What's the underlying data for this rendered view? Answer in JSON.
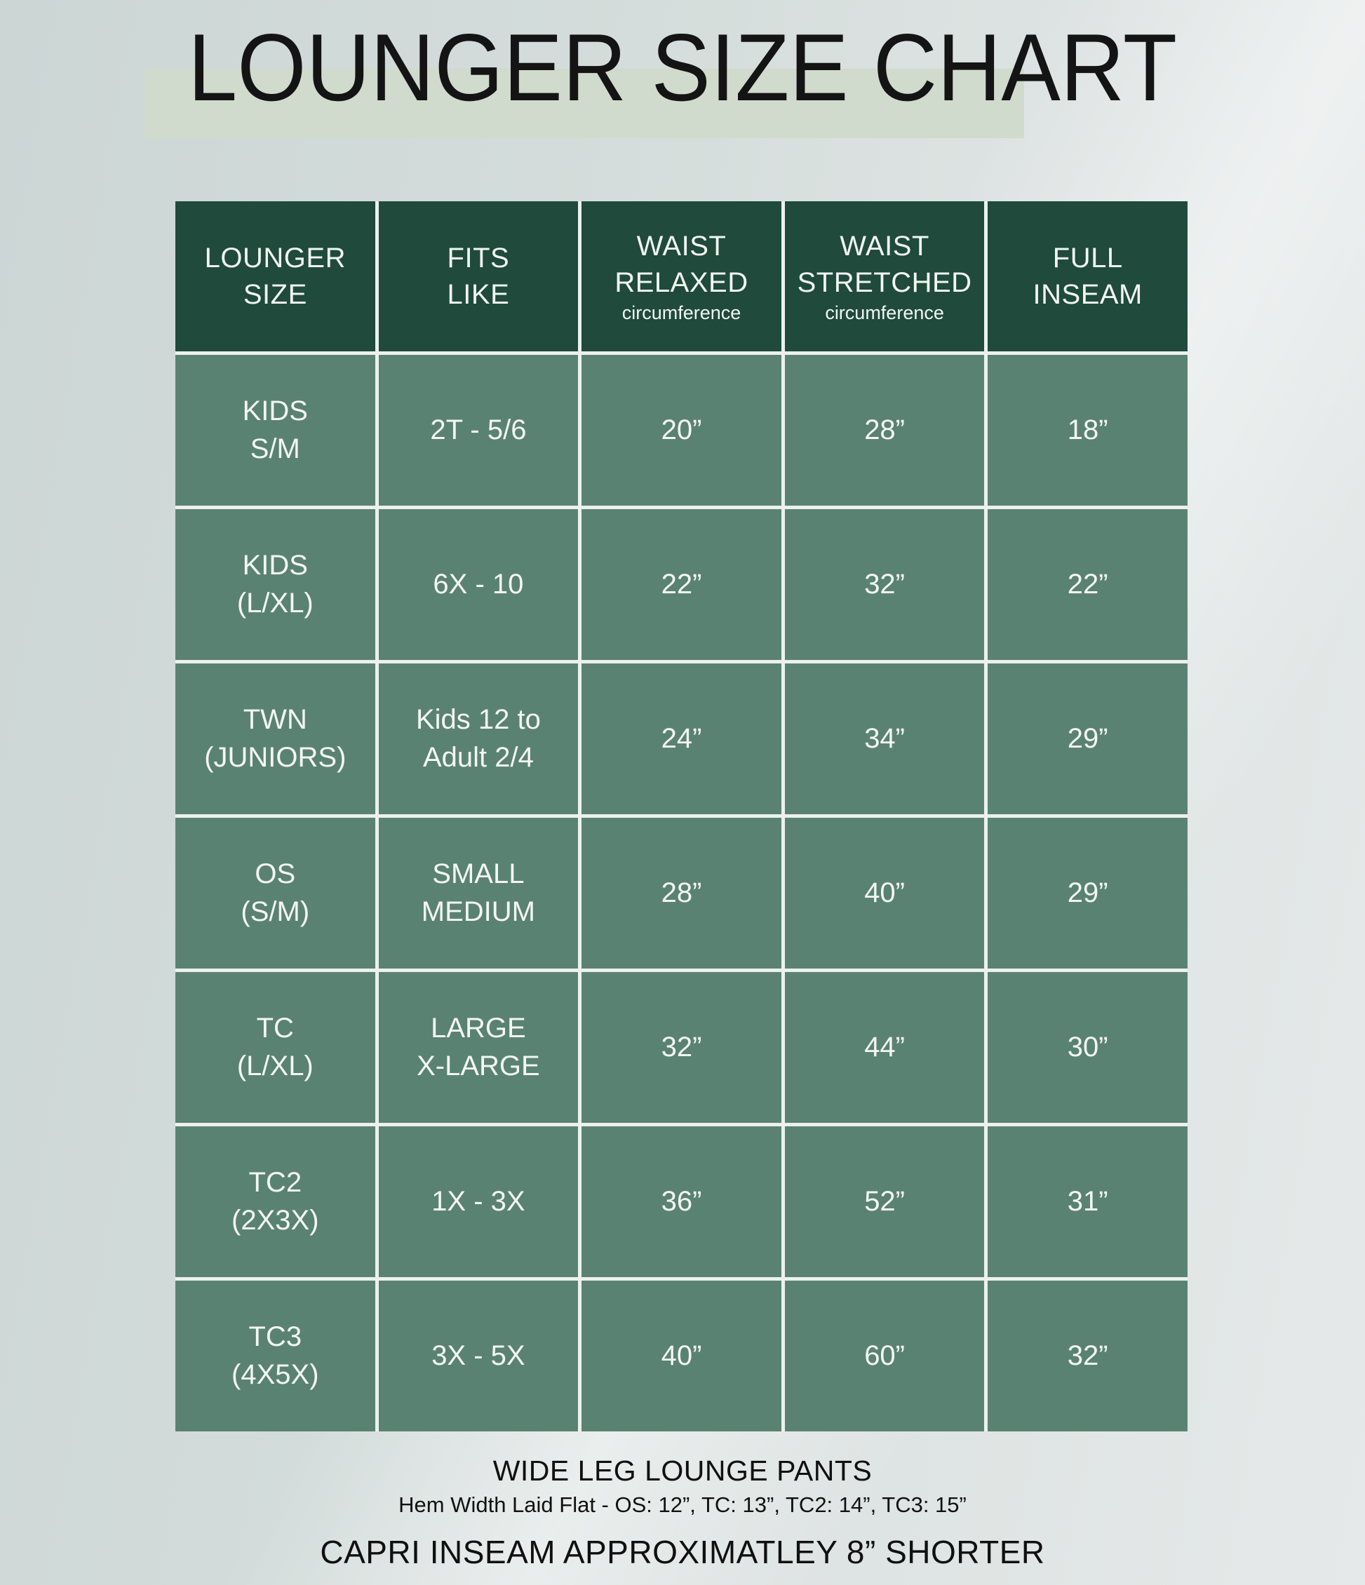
{
  "title": "LOUNGER SIZE CHART",
  "colors": {
    "header_bg": "#1f4a3c",
    "cell_bg": "#5a8273",
    "cell_border": "#ecf1ee",
    "title_highlight": "#d0dacd",
    "table_text": "#f3f7f4",
    "page_text": "#141414",
    "background_left": "#ccd6d5",
    "background_right": "#e6eaea"
  },
  "table": {
    "header": [
      {
        "main": "LOUNGER\nSIZE",
        "sub": ""
      },
      {
        "main": "FITS\nLIKE",
        "sub": ""
      },
      {
        "main": "WAIST\nRELAXED",
        "sub": "circumference"
      },
      {
        "main": "WAIST\nSTRETCHED",
        "sub": "circumference"
      },
      {
        "main": "FULL\nINSEAM",
        "sub": ""
      }
    ],
    "rows": [
      {
        "cells": [
          "KIDS\nS/M",
          "2T - 5/6",
          "20”",
          "28”",
          "18”"
        ]
      },
      {
        "cells": [
          "KIDS\n(L/XL)",
          "6X - 10",
          "22”",
          "32”",
          "22”"
        ]
      },
      {
        "cells": [
          "TWN\n(JUNIORS)",
          "Kids 12 to\nAdult 2/4",
          "24”",
          "34”",
          "29”"
        ]
      },
      {
        "cells": [
          "OS\n(S/M)",
          "SMALL\nMEDIUM",
          "28”",
          "40”",
          "29”"
        ]
      },
      {
        "cells": [
          "TC\n(L/XL)",
          "LARGE\nX-LARGE",
          "32”",
          "44”",
          "30”"
        ]
      },
      {
        "cells": [
          "TC2\n(2X3X)",
          "1X - 3X",
          "36”",
          "52”",
          "31”"
        ]
      },
      {
        "cells": [
          "TC3\n(4X5X)",
          "3X - 5X",
          "40”",
          "60”",
          "32”"
        ]
      }
    ]
  },
  "footer": {
    "line1": "WIDE LEG LOUNGE PANTS",
    "line2": "Hem Width Laid Flat - OS: 12”, TC: 13”, TC2: 14”, TC3: 15”",
    "line3": "CAPRI INSEAM APPROXIMATLEY 8” SHORTER"
  },
  "chart_data": {
    "type": "table",
    "title": "LOUNGER SIZE CHART",
    "columns": [
      "LOUNGER SIZE",
      "FITS LIKE",
      "WAIST RELAXED circumference",
      "WAIST STRETCHED circumference",
      "FULL INSEAM"
    ],
    "rows": [
      [
        "KIDS S/M",
        "2T - 5/6",
        "20”",
        "28”",
        "18”"
      ],
      [
        "KIDS (L/XL)",
        "6X - 10",
        "22”",
        "32”",
        "22”"
      ],
      [
        "TWN (JUNIORS)",
        "Kids 12 to Adult 2/4",
        "24”",
        "34”",
        "29”"
      ],
      [
        "OS (S/M)",
        "SMALL MEDIUM",
        "28”",
        "40”",
        "29”"
      ],
      [
        "TC (L/XL)",
        "LARGE X-LARGE",
        "32”",
        "44”",
        "30”"
      ],
      [
        "TC2 (2X3X)",
        "1X - 3X",
        "36”",
        "52”",
        "31”"
      ],
      [
        "TC3 (4X5X)",
        "3X - 5X",
        "40”",
        "60”",
        "32”"
      ]
    ],
    "notes": [
      "WIDE LEG LOUNGE PANTS",
      "Hem Width Laid Flat - OS: 12”, TC: 13”, TC2: 14”, TC3: 15”",
      "CAPRI INSEAM APPROXIMATLEY 8” SHORTER"
    ]
  }
}
